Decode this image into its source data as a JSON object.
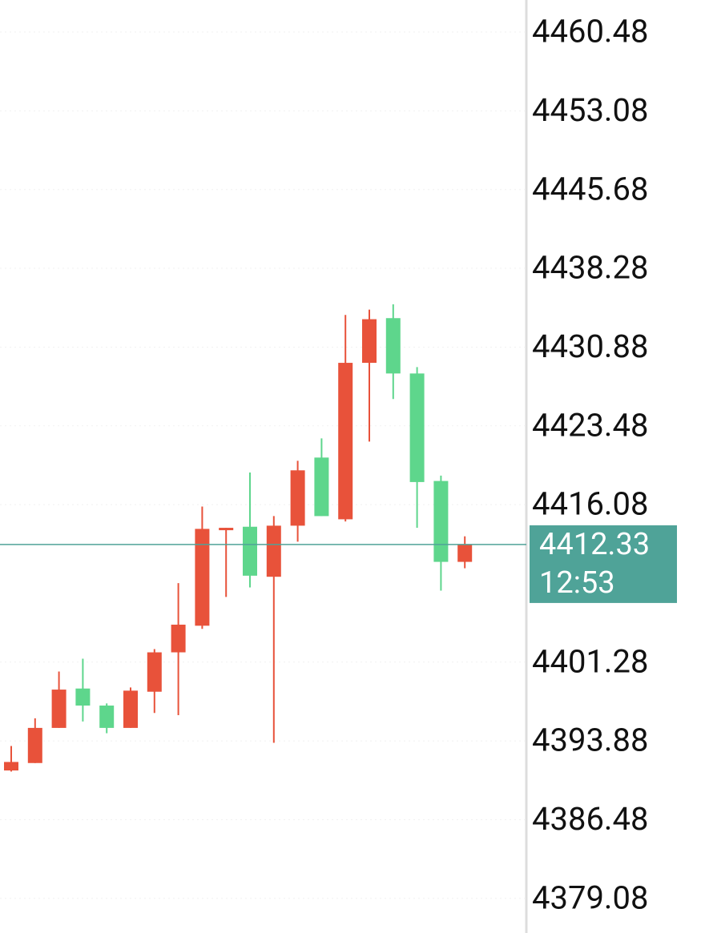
{
  "chart_data": {
    "type": "candlestick",
    "open": [
      4391.1,
      4391.8,
      4395.1,
      4398.8,
      4397.2,
      4395.1,
      4398.5,
      4402.2,
      4404.7,
      4413.7,
      4414.0,
      4409.3,
      4414.1,
      4420.5,
      4414.7,
      4429.4,
      4433.6,
      4428.4,
      4418.3,
      4410.7
    ],
    "high": [
      4393.4,
      4396.0,
      4400.4,
      4401.6,
      4397.4,
      4398.9,
      4402.5,
      4408.7,
      4415.9,
      4413.9,
      4419.1,
      4415.0,
      4420.2,
      4422.3,
      4433.9,
      4434.4,
      4434.9,
      4429.0,
      4418.8,
      4413.1
    ],
    "low": [
      4391.0,
      4391.8,
      4395.1,
      4395.7,
      4394.6,
      4395.1,
      4396.5,
      4396.3,
      4404.4,
      4407.4,
      4408.3,
      4393.7,
      4412.6,
      4415.0,
      4414.5,
      4422.0,
      4426.0,
      4413.9,
      4408.0,
      4410.1
    ],
    "close": [
      4391.9,
      4395.1,
      4398.7,
      4397.2,
      4395.1,
      4398.6,
      4402.2,
      4404.8,
      4413.8,
      4413.9,
      4409.4,
      4414.1,
      4419.3,
      4415.0,
      4429.4,
      4433.5,
      4428.4,
      4418.2,
      4410.7,
      4412.33
    ],
    "up_color": "#e8523a",
    "down_color": "#5ed68c",
    "ylim": [
      4375.83,
      4463.49
    ],
    "yticks": [
      4460.48,
      4453.08,
      4445.68,
      4438.28,
      4430.88,
      4423.48,
      4416.08,
      4401.28,
      4393.88,
      4386.48,
      4379.08
    ],
    "grid": true,
    "last_price": 4412.33,
    "countdown": "12:53",
    "last_price_color": "#4fa398"
  }
}
